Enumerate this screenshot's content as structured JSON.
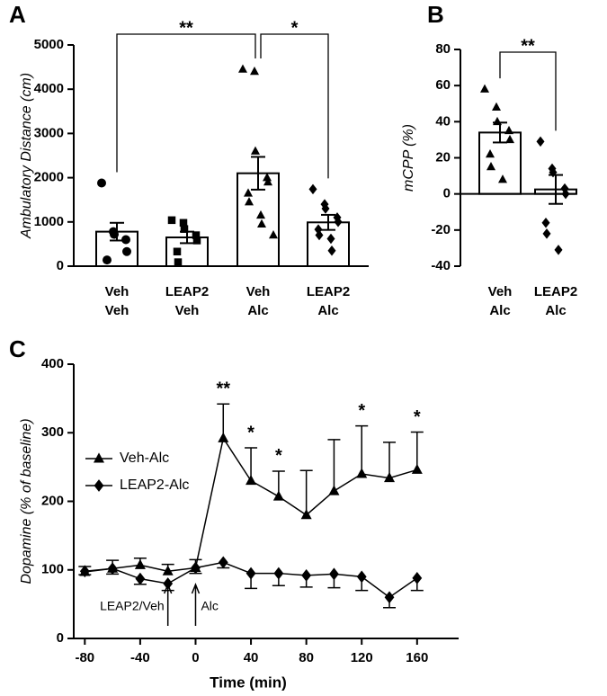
{
  "chart_data": [
    {
      "type": "bar",
      "panel": "A",
      "ylabel": "Ambulatory Distance (cm)",
      "categories": [
        [
          "Veh",
          "Veh"
        ],
        [
          "LEAP2",
          "Veh"
        ],
        [
          "Veh",
          "Alc"
        ],
        [
          "LEAP2",
          "Alc"
        ]
      ],
      "values": [
        780,
        650,
        2100,
        990
      ],
      "errors": [
        200,
        130,
        370,
        170
      ],
      "points": [
        [
          1880,
          780,
          720,
          600,
          330,
          140
        ],
        [
          1040,
          980,
          840,
          700,
          580,
          330,
          90
        ],
        [
          4450,
          4400,
          2600,
          2000,
          1900,
          1650,
          1450,
          1150,
          950,
          700
        ],
        [
          1740,
          1400,
          1300,
          1100,
          1000,
          830,
          700,
          620,
          350
        ]
      ],
      "markers": [
        "circle",
        "square",
        "triangle",
        "diamond"
      ],
      "color": "#000000",
      "bar_fill": "#ffffff",
      "ylim": [
        0,
        5000
      ],
      "yticks": [
        0,
        1000,
        2000,
        3000,
        4000,
        5000
      ],
      "annotations": [
        {
          "text": "**"
        },
        {
          "text": "*"
        }
      ]
    },
    {
      "type": "bar",
      "panel": "B",
      "ylabel": "mCPP (%)",
      "categories": [
        [
          "Veh",
          "Alc"
        ],
        [
          "LEAP2",
          "Alc"
        ]
      ],
      "values": [
        34,
        2.5
      ],
      "errors": [
        5.5,
        8
      ],
      "points": [
        [
          58,
          48,
          40,
          35,
          30,
          22,
          15,
          8
        ],
        [
          29,
          14,
          12,
          3,
          0,
          -16,
          -22,
          -31
        ]
      ],
      "markers": [
        "triangle",
        "diamond"
      ],
      "color": "#000000",
      "bar_fill": "#ffffff",
      "ylim": [
        -40,
        80
      ],
      "yticks": [
        -40,
        -20,
        0,
        20,
        40,
        60,
        80
      ],
      "annotations": [
        {
          "text": "**"
        }
      ]
    },
    {
      "type": "line",
      "panel": "C",
      "ylabel": "Dopamine (% of baseline)",
      "xlabel": "Time (min)",
      "x": [
        -80,
        -60,
        -40,
        -20,
        0,
        20,
        40,
        60,
        80,
        100,
        120,
        140,
        160
      ],
      "series": [
        {
          "name": "Veh-Alc",
          "color": "#000000",
          "marker": "triangle",
          "values": [
            97,
            102,
            107,
            98,
            103,
            292,
            230,
            207,
            180,
            215,
            240,
            234,
            246
          ],
          "errors": [
            8,
            12,
            10,
            10,
            12,
            50,
            48,
            37,
            65,
            75,
            70,
            52,
            55
          ]
        },
        {
          "name": "LEAP2-Alc",
          "color": "#000000",
          "marker": "diamond",
          "values": [
            98,
            102,
            87,
            80,
            103,
            111,
            95,
            95,
            92,
            94,
            90,
            60,
            88
          ],
          "errors": [
            5,
            8,
            8,
            10,
            8,
            8,
            22,
            18,
            17,
            20,
            20,
            15,
            18
          ]
        }
      ],
      "xlim": [
        -88,
        190
      ],
      "xticks": [
        -80,
        -40,
        0,
        40,
        80,
        120,
        160
      ],
      "ylim": [
        0,
        400
      ],
      "yticks": [
        0,
        100,
        200,
        300,
        400
      ],
      "legend": "left",
      "annotations": [
        {
          "x": 20,
          "text": "**"
        },
        {
          "x": 40,
          "text": "*"
        },
        {
          "x": 60,
          "text": "*"
        },
        {
          "x": 120,
          "text": "*"
        },
        {
          "x": 160,
          "text": "*"
        }
      ],
      "arrows": [
        {
          "x": -20,
          "text": "LEAP2/Veh"
        },
        {
          "x": 0,
          "text": "Alc"
        }
      ]
    }
  ]
}
